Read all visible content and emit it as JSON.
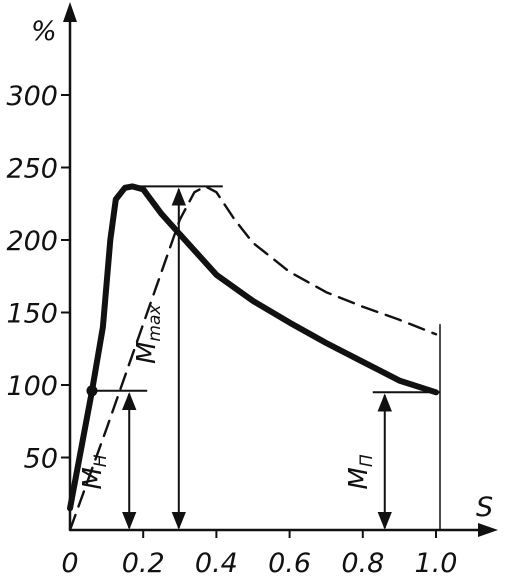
{
  "chart_data": {
    "type": "line",
    "ylabel": "%",
    "xlabel": "S",
    "xlim": [
      0,
      1.12
    ],
    "ylim": [
      0,
      350
    ],
    "xticks": [
      "0",
      "0.2",
      "0.4",
      "0.6",
      "0.8",
      "1.0"
    ],
    "xtick_values": [
      0,
      0.2,
      0.4,
      0.6,
      0.8,
      1.0
    ],
    "yticks": [
      "50",
      "100",
      "150",
      "200",
      "250",
      "300"
    ],
    "ytick_values": [
      50,
      100,
      150,
      200,
      250,
      300
    ],
    "series": [
      {
        "style": "solid-thick",
        "x": [
          0,
          0.06,
          0.09,
          0.11,
          0.125,
          0.15,
          0.17,
          0.2,
          0.25,
          0.3,
          0.4,
          0.5,
          0.6,
          0.7,
          0.8,
          0.9,
          1.0
        ],
        "y": [
          15,
          96,
          140,
          200,
          228,
          236,
          237,
          235,
          218,
          204,
          176,
          158,
          143,
          129,
          116,
          103,
          95
        ]
      },
      {
        "style": "dashed",
        "x": [
          0,
          0.1,
          0.2,
          0.3,
          0.34,
          0.37,
          0.4,
          0.45,
          0.5,
          0.6,
          0.7,
          0.8,
          0.9,
          1.0
        ],
        "y": [
          0,
          70,
          142,
          214,
          233,
          237,
          233,
          214,
          198,
          178,
          164,
          154,
          145,
          135
        ]
      }
    ],
    "markers": [
      {
        "x": 0.06,
        "y": 96
      }
    ],
    "annotations": [
      {
        "label": "M",
        "sub": "H",
        "x": 0.17,
        "y_top": 96
      },
      {
        "label": "M",
        "sub": "max",
        "x": 0.3,
        "y_top": 237
      },
      {
        "label": "M",
        "sub": "П",
        "x": 0.86,
        "y_top": 95
      }
    ]
  }
}
